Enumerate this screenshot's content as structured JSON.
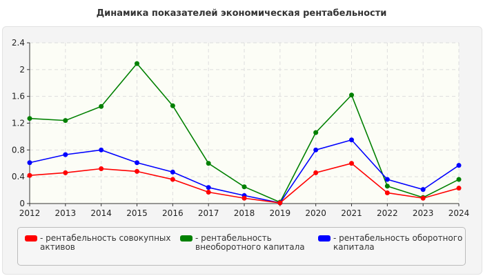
{
  "chart_data": {
    "type": "line",
    "title": "Динамика показателей экономическая рентабельности",
    "categories": [
      "2012",
      "2013",
      "2014",
      "2015",
      "2016",
      "2017",
      "2018",
      "2019",
      "2020",
      "2021",
      "2022",
      "2023",
      "2024"
    ],
    "ylim": [
      0,
      2.4
    ],
    "yticks": [
      "0",
      "0.4",
      "0.8",
      "1.2",
      "1.6",
      "2",
      "2.4"
    ],
    "grid": true,
    "legend_position": "bottom",
    "series": [
      {
        "name": "- рентабельность совокупных активов",
        "color": "#ff0000",
        "values": [
          0.42,
          0.46,
          0.52,
          0.48,
          0.36,
          0.17,
          0.08,
          0.01,
          0.46,
          0.6,
          0.16,
          0.08,
          0.23
        ]
      },
      {
        "name": "- рентабельность внеоборотного капитала",
        "color": "#008000",
        "values": [
          1.27,
          1.24,
          1.45,
          2.09,
          1.46,
          0.6,
          0.25,
          0.02,
          1.06,
          1.62,
          0.26,
          0.09,
          0.36
        ]
      },
      {
        "name": "- рентабельность оборотного капитала",
        "color": "#0000ff",
        "values": [
          0.61,
          0.73,
          0.8,
          0.61,
          0.47,
          0.24,
          0.12,
          0.01,
          0.8,
          0.95,
          0.36,
          0.21,
          0.57
        ]
      }
    ]
  }
}
